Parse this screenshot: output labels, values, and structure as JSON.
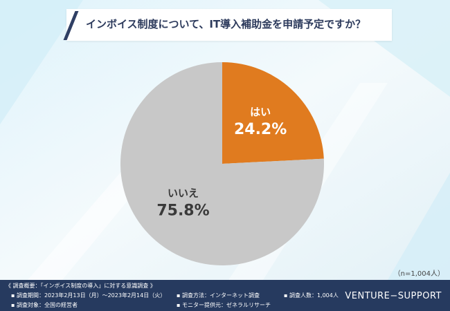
{
  "header": {
    "title": "インボイス制度について、IT導入補助金を申請予定ですか？"
  },
  "sample_note": "（n=1,004人）",
  "colors": {
    "yes": "#e07b1f",
    "no": "#c8c8c8",
    "navy": "#263a5f"
  },
  "chart_data": {
    "type": "pie",
    "title": "インボイス制度について、IT導入補助金を申請予定ですか？",
    "slices": [
      {
        "label": "はい",
        "value": 24.2,
        "display": "24.2%",
        "color": "#e07b1f"
      },
      {
        "label": "いいえ",
        "value": 75.8,
        "display": "75.8%",
        "color": "#c8c8c8"
      }
    ],
    "start": "12 o'clock",
    "direction": "clockwise"
  },
  "footer": {
    "summary": "《 調査概要：「インボイス制度の導入」に対する意識調査 》",
    "period": "▪ 調査期間：2023年2月13日（月）〜2023年2月14日（火）",
    "target": "▪ 調査対象：全国の経営者",
    "method": "▪ 調査方法：インターネット調査",
    "provider": "▪ モニター提供元：ゼネラルリサーチ",
    "respondents": "▪ 調査人数：1,004人",
    "brand": "VENTURE−SUPPORT"
  }
}
